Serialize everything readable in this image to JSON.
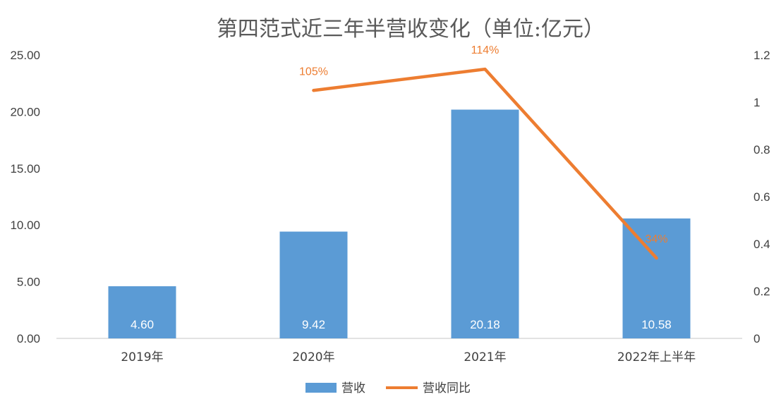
{
  "chart_data": {
    "type": "bar",
    "title": "第四范式近三年半营收变化（单位:亿元）",
    "categories": [
      "2019年",
      "2020年",
      "2021年",
      "2022年上半年"
    ],
    "series": [
      {
        "name": "营收",
        "type": "bar",
        "axis": "left",
        "color": "#5B9BD5",
        "values": [
          4.6,
          9.42,
          20.18,
          10.58
        ],
        "labels": [
          "4.60",
          "9.42",
          "20.18",
          "10.58"
        ]
      },
      {
        "name": "营收同比",
        "type": "line",
        "axis": "right",
        "color": "#ED7D31",
        "values": [
          null,
          1.05,
          1.14,
          0.34
        ],
        "labels": [
          "",
          "105%",
          "114%",
          "34%"
        ]
      }
    ],
    "y_left": {
      "ylim": [
        0,
        25
      ],
      "ticks": [
        "0.00",
        "5.00",
        "10.00",
        "15.00",
        "20.00",
        "25.00"
      ]
    },
    "y_right": {
      "ylim": [
        0,
        1.2
      ],
      "ticks": [
        "0",
        "0.2",
        "0.4",
        "0.6",
        "0.8",
        "1",
        "1.2"
      ]
    },
    "grid": false,
    "legend": "bottom"
  }
}
